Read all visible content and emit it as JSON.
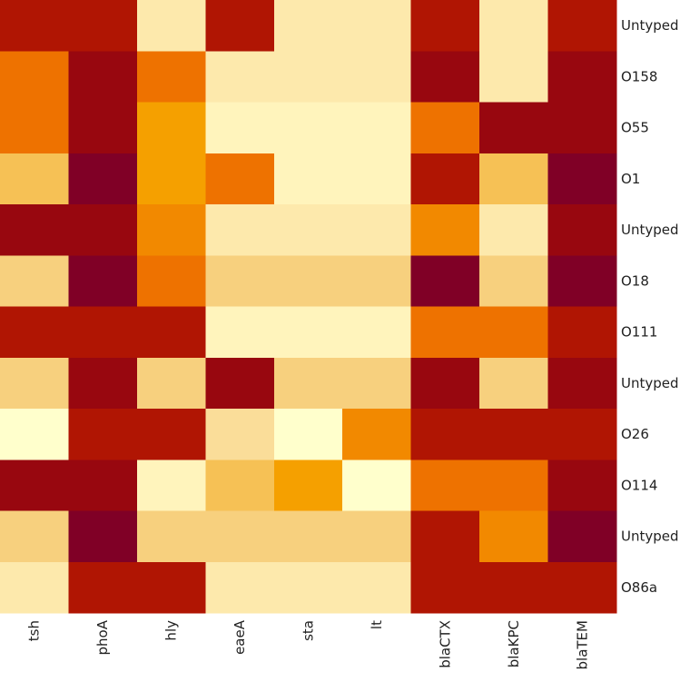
{
  "chart_data": {
    "type": "heatmap",
    "title": "",
    "xlabel": "",
    "ylabel": "",
    "columns": [
      "tsh",
      "phoA",
      "hly",
      "eaeA",
      "sta",
      "lt",
      "blaCTX",
      "blaKPC",
      "blaTEM"
    ],
    "rows": [
      "Untyped",
      "O158",
      "O55",
      "O1",
      "Untyped",
      "O18",
      "O111",
      "Untyped",
      "O26",
      "O114",
      "Untyped",
      "O86a"
    ],
    "scale_range": [
      0,
      7
    ],
    "colorscale": [
      "#ffffcc",
      "#fff0b5",
      "#fbe09f",
      "#f6cd78",
      "#f6b83b",
      "#f5a000",
      "#f18000",
      "#ea6000",
      "#c42400",
      "#a10a06",
      "#800026"
    ],
    "values": [
      [
        6,
        6,
        1,
        6,
        1,
        1,
        6,
        1,
        6
      ],
      [
        4.5,
        6.5,
        4.5,
        1,
        1,
        1,
        6.5,
        1,
        6.5
      ],
      [
        4.5,
        6.5,
        3.5,
        0.5,
        0.5,
        0.5,
        4.5,
        6.5,
        6.5
      ],
      [
        2.5,
        7,
        3.5,
        4.5,
        0.5,
        0.5,
        6,
        2.5,
        7
      ],
      [
        6.5,
        6.5,
        4,
        1,
        1,
        1,
        4,
        1,
        6.5
      ],
      [
        2,
        7,
        4.5,
        2,
        2,
        2,
        7,
        2,
        7
      ],
      [
        6,
        6,
        6,
        0.5,
        0.5,
        0.5,
        4.5,
        4.5,
        6
      ],
      [
        2,
        6.5,
        2,
        6.5,
        2,
        2,
        6.5,
        2,
        6.5
      ],
      [
        0,
        6,
        6,
        1.5,
        0,
        4,
        6,
        6,
        6
      ],
      [
        6.5,
        6.5,
        0.5,
        2.5,
        3.5,
        0,
        4.5,
        4.5,
        6.5
      ],
      [
        2,
        7,
        2,
        2,
        2,
        2,
        6,
        4,
        7
      ],
      [
        1,
        6,
        6,
        1,
        1,
        1,
        6,
        6,
        6
      ]
    ]
  }
}
